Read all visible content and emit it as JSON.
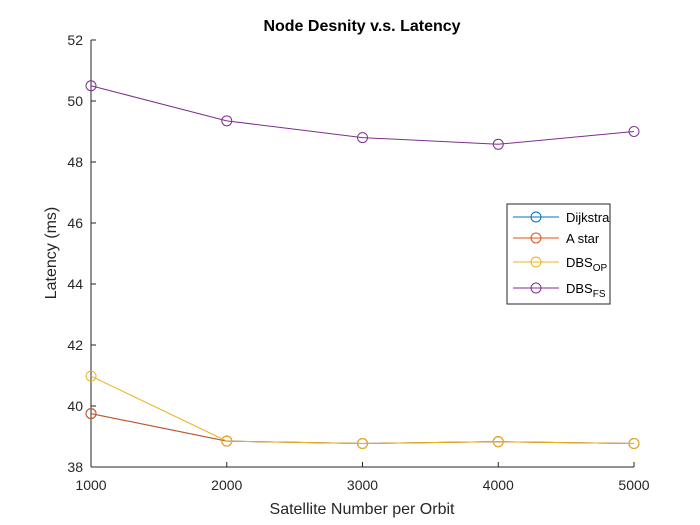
{
  "chart_data": {
    "type": "line",
    "title": "Node Desnity v.s. Latency",
    "xlabel": "Satellite Number per Orbit",
    "ylabel": "Latency (ms)",
    "xlim": [
      1000,
      5000
    ],
    "ylim": [
      38,
      52
    ],
    "xticks": [
      1000,
      2000,
      3000,
      4000,
      5000
    ],
    "yticks": [
      38,
      40,
      42,
      44,
      46,
      48,
      50,
      52
    ],
    "x": [
      1000,
      2000,
      3000,
      4000,
      5000
    ],
    "grid": false,
    "legend_position": "right",
    "series": [
      {
        "name": "Dijkstra",
        "name_main": "Dijkstra",
        "name_sub": "",
        "color": "#0072BD",
        "values": [
          39.75,
          38.85,
          38.77,
          38.83,
          38.77
        ]
      },
      {
        "name": "A star",
        "name_main": "A star",
        "name_sub": "",
        "color": "#D95319",
        "values": [
          39.75,
          38.85,
          38.77,
          38.83,
          38.77
        ]
      },
      {
        "name": "DBS_OP",
        "name_main": "DBS",
        "name_sub": "OP",
        "color": "#EDB120",
        "values": [
          40.98,
          38.85,
          38.77,
          38.83,
          38.77
        ]
      },
      {
        "name": "DBS_FS",
        "name_main": "DBS",
        "name_sub": "FS",
        "color": "#7E2F8E",
        "values": [
          50.5,
          49.35,
          48.8,
          48.58,
          49.0
        ]
      }
    ]
  }
}
